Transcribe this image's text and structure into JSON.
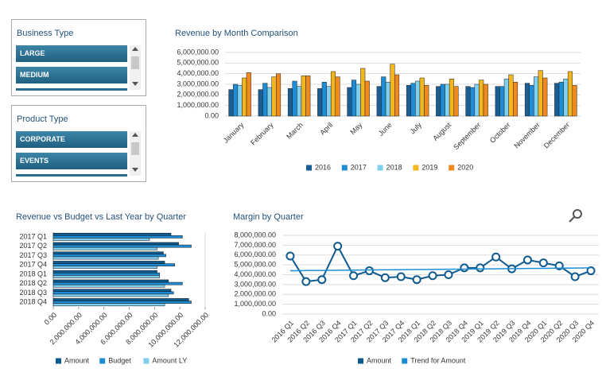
{
  "slicers": [
    {
      "title": "Business Type",
      "items": [
        "LARGE",
        "MEDIUM"
      ]
    },
    {
      "title": "Product Type",
      "items": [
        "CORPORATE",
        "EVENTS"
      ]
    }
  ],
  "chart_data": [
    {
      "type": "bar",
      "title": "Revenue by Month Comparison",
      "categories": [
        "January",
        "February",
        "March",
        "April",
        "May",
        "June",
        "July",
        "August",
        "September",
        "October",
        "November",
        "December"
      ],
      "series": [
        {
          "name": "2016",
          "color": "#1b5e94",
          "values": [
            2500000,
            2500000,
            2600000,
            2600000,
            2700000,
            2800000,
            2900000,
            2800000,
            2800000,
            2800000,
            3100000,
            3100000
          ]
        },
        {
          "name": "2017",
          "color": "#1f8dd6",
          "values": [
            3000000,
            3100000,
            3300000,
            3200000,
            3400000,
            3700000,
            3100000,
            3000000,
            2700000,
            2800000,
            2900000,
            3200000
          ]
        },
        {
          "name": "2018",
          "color": "#80d0f2",
          "values": [
            2900000,
            2700000,
            2800000,
            2800000,
            3000000,
            3200000,
            3300000,
            3000000,
            3000000,
            3500000,
            3700000,
            3500000
          ]
        },
        {
          "name": "2019",
          "color": "#f2b71e",
          "values": [
            3600000,
            3700000,
            3800000,
            4200000,
            4500000,
            4900000,
            3600000,
            3500000,
            3400000,
            3900000,
            4300000,
            4200000
          ]
        },
        {
          "name": "2020",
          "color": "#f08a1e",
          "values": [
            4100000,
            4000000,
            3800000,
            3700000,
            3300000,
            3900000,
            2900000,
            2800000,
            3000000,
            3200000,
            3600000,
            2900000
          ]
        }
      ],
      "ylim": [
        0,
        6000000
      ],
      "yticks": [
        {
          "value": 0,
          "label": "0.00"
        },
        {
          "value": 1000000,
          "label": "1,000,000.00"
        },
        {
          "value": 2000000,
          "label": "2,000,000.00"
        },
        {
          "value": 3000000,
          "label": "3,000,000.00"
        },
        {
          "value": 4000000,
          "label": "4,000,000.00"
        },
        {
          "value": 5000000,
          "label": "5,000,000.00"
        },
        {
          "value": 6000000,
          "label": "6,000,000.00"
        }
      ],
      "grid": true,
      "legend": "bottom"
    },
    {
      "type": "bar",
      "orientation": "horizontal",
      "title": "Revenue vs Budget vs Last Year by Quarter",
      "categories": [
        "2017 Q1",
        "2017 Q2",
        "2017 Q3",
        "2017 Q4",
        "2018 Q1",
        "2018 Q2",
        "2018 Q3",
        "2018 Q4"
      ],
      "series": [
        {
          "name": "Amount",
          "color": "#0f5a8f",
          "values": [
            9300000,
            9900000,
            8700000,
            8800000,
            8200000,
            9100000,
            9300000,
            10700000
          ]
        },
        {
          "name": "Budget",
          "color": "#1f8dd6",
          "values": [
            10200000,
            10900000,
            8900000,
            9600000,
            8400000,
            10200000,
            9500000,
            10900000
          ]
        },
        {
          "name": "Amount LY",
          "color": "#80cdee",
          "values": [
            7600000,
            8200000,
            8300000,
            8200000,
            8400000,
            8800000,
            9100000,
            8800000
          ]
        }
      ],
      "xlim": [
        0,
        12000000
      ],
      "xticks": [
        {
          "value": 0,
          "label": "0.00"
        },
        {
          "value": 2000000,
          "label": "2,000,000.00"
        },
        {
          "value": 4000000,
          "label": "4,000,000.00"
        },
        {
          "value": 6000000,
          "label": "6,000,000.00"
        },
        {
          "value": 8000000,
          "label": "8,000,000.00"
        },
        {
          "value": 10000000,
          "label": "10,000,000.00"
        },
        {
          "value": 12000000,
          "label": "12,000,000.00"
        }
      ],
      "grid": false,
      "legend": "bottom"
    },
    {
      "type": "line",
      "title": "Margin by Quarter",
      "categories": [
        "2016 Q1",
        "2016 Q2",
        "2016 Q3",
        "2016 Q4",
        "2017 Q1",
        "2017 Q2",
        "2017 Q3",
        "2017 Q4",
        "2018 Q1",
        "2018 Q2",
        "2018 Q3",
        "2018 Q4",
        "2019 Q1",
        "2019 Q2",
        "2019 Q3",
        "2019 Q4",
        "2020 Q1",
        "2020 Q2",
        "2020 Q3",
        "2020 Q4"
      ],
      "series": [
        {
          "name": "Amount",
          "color": "#0f5a8f",
          "marker": "circle",
          "values": [
            5900000,
            3300000,
            3500000,
            6900000,
            3900000,
            4400000,
            3700000,
            3800000,
            3500000,
            3900000,
            4000000,
            4700000,
            4700000,
            5800000,
            4600000,
            5500000,
            5200000,
            4900000,
            3800000,
            4400000
          ]
        },
        {
          "name": "Trend for Amount",
          "color": "#1f8dd6",
          "values": [
            4400000,
            4420000,
            4430000,
            4450000,
            4460000,
            4480000,
            4490000,
            4510000,
            4530000,
            4540000,
            4560000,
            4570000,
            4590000,
            4600000,
            4620000,
            4640000,
            4650000,
            4670000,
            4680000,
            4700000
          ]
        }
      ],
      "ylim": [
        0,
        8000000
      ],
      "yticks": [
        {
          "value": 0,
          "label": "0.00"
        },
        {
          "value": 1000000,
          "label": "1,000,000.00"
        },
        {
          "value": 2000000,
          "label": "2,000,000.00"
        },
        {
          "value": 3000000,
          "label": "3,000,000.00"
        },
        {
          "value": 4000000,
          "label": "4,000,000.00"
        },
        {
          "value": 5000000,
          "label": "5,000,000.00"
        },
        {
          "value": 6000000,
          "label": "6,000,000.00"
        },
        {
          "value": 7000000,
          "label": "7,000,000.00"
        },
        {
          "value": 8000000,
          "label": "8,000,000.00"
        }
      ],
      "grid": true,
      "legend": "bottom"
    }
  ]
}
